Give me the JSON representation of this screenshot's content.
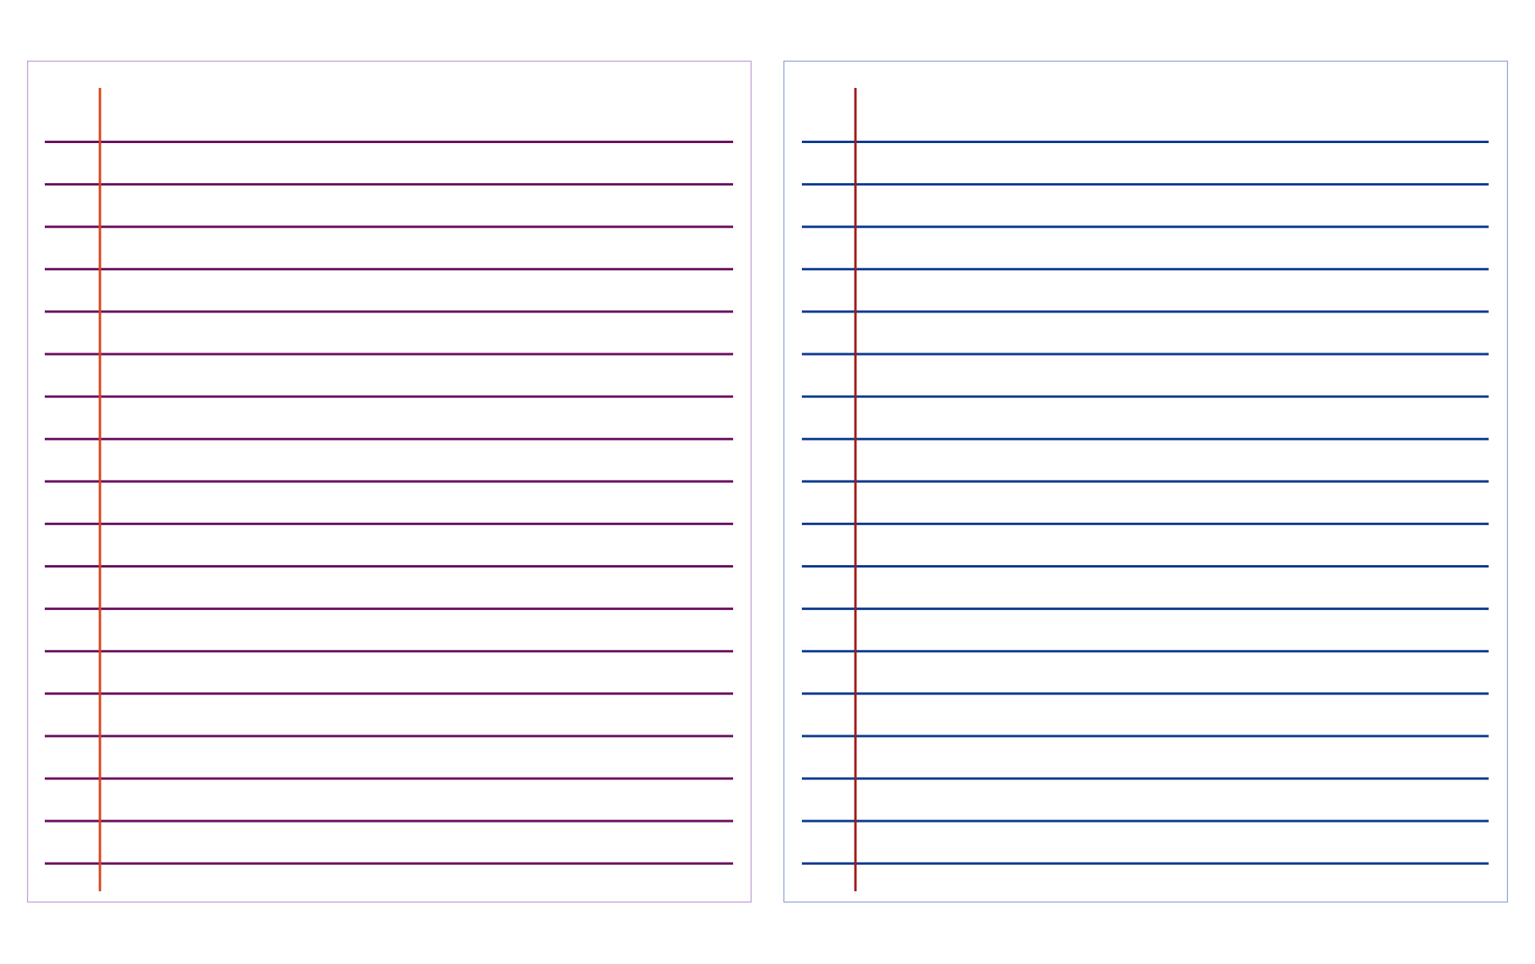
{
  "sheets": [
    {
      "border_color": "#c39bd3",
      "line_color": "#6b0f5f",
      "margin_color": "#d8461c"
    },
    {
      "border_color": "#8ea3d6",
      "line_color": "#0d3a8e",
      "margin_color": "#9c1b1b"
    }
  ]
}
